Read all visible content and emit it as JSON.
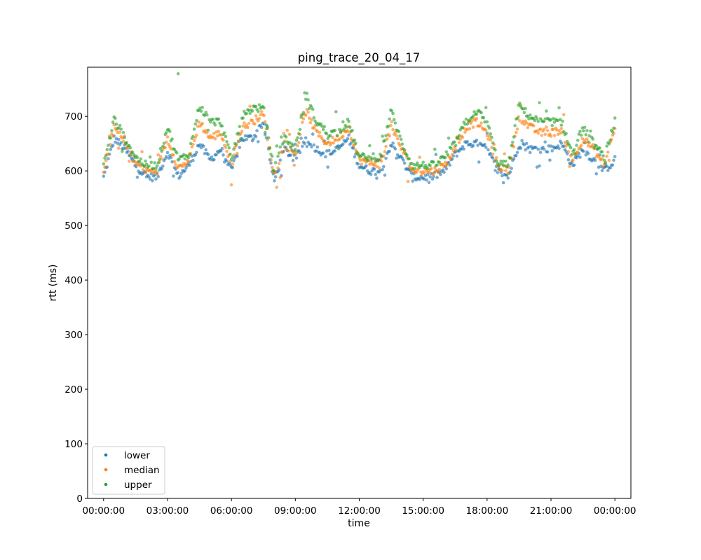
{
  "chart_data": {
    "type": "scatter",
    "title": "ping_trace_20_04_17",
    "xlabel": "time",
    "ylabel": "rtt (ms)",
    "xlim": [
      "-00:45:00",
      "+24:45:00"
    ],
    "ylim": [
      0,
      790
    ],
    "x_ticks": [
      "00:00:00",
      "03:00:00",
      "06:00:00",
      "09:00:00",
      "12:00:00",
      "15:00:00",
      "18:00:00",
      "21:00:00",
      "00:00:00"
    ],
    "y_ticks": [
      "0",
      "100",
      "200",
      "300",
      "400",
      "500",
      "600",
      "700"
    ],
    "grid": false,
    "legend_position": "lower left",
    "x": [
      "00:00",
      "00:30",
      "01:00",
      "01:30",
      "02:00",
      "02:30",
      "03:00",
      "03:30",
      "04:00",
      "04:30",
      "05:00",
      "05:30",
      "06:00",
      "06:30",
      "07:00",
      "07:30",
      "08:00",
      "08:30",
      "09:00",
      "09:30",
      "10:00",
      "10:30",
      "11:00",
      "11:30",
      "12:00",
      "12:30",
      "13:00",
      "13:30",
      "14:00",
      "14:30",
      "15:00",
      "15:30",
      "16:00",
      "16:30",
      "17:00",
      "17:30",
      "18:00",
      "18:30",
      "19:00",
      "19:30",
      "20:00",
      "20:30",
      "21:00",
      "21:30",
      "22:00",
      "22:30",
      "23:00",
      "23:30",
      "24:00"
    ],
    "series": [
      {
        "name": "lower",
        "color": "#1f77b4",
        "values": [
          588,
          660,
          640,
          610,
          590,
          588,
          635,
          590,
          610,
          650,
          620,
          640,
          600,
          660,
          660,
          690,
          580,
          640,
          620,
          660,
          640,
          630,
          640,
          660,
          610,
          600,
          600,
          650,
          620,
          588,
          588,
          590,
          600,
          630,
          650,
          650,
          640,
          600,
          590,
          650,
          640,
          640,
          640,
          650,
          610,
          640,
          620,
          600,
          620
        ]
      },
      {
        "name": "median",
        "color": "#ff7f0e",
        "values": [
          600,
          680,
          650,
          615,
          600,
          600,
          660,
          605,
          620,
          690,
          660,
          670,
          610,
          680,
          690,
          705,
          590,
          650,
          630,
          710,
          670,
          650,
          660,
          680,
          620,
          615,
          615,
          680,
          640,
          600,
          600,
          600,
          610,
          640,
          680,
          690,
          670,
          610,
          600,
          700,
          680,
          670,
          670,
          675,
          620,
          660,
          640,
          610,
          680
        ]
      },
      {
        "name": "upper",
        "color": "#2ca02c",
        "values": [
          610,
          695,
          660,
          625,
          610,
          610,
          680,
          620,
          630,
          720,
          690,
          690,
          620,
          700,
          715,
          715,
          600,
          660,
          640,
          735,
          690,
          670,
          670,
          690,
          625,
          625,
          625,
          710,
          650,
          610,
          610,
          610,
          625,
          650,
          690,
          710,
          690,
          615,
          610,
          720,
          700,
          690,
          690,
          690,
          630,
          680,
          650,
          625,
          690
        ]
      }
    ],
    "outliers": [
      {
        "series": "upper",
        "x": "03:30",
        "y": 778
      }
    ]
  }
}
